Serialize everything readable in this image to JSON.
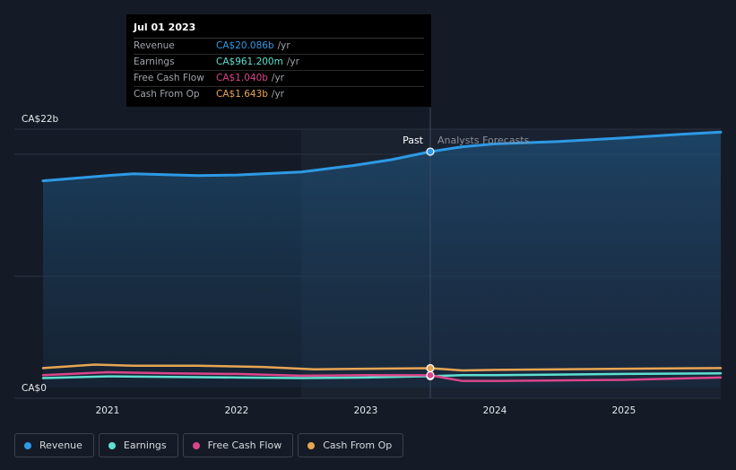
{
  "chart_data": {
    "type": "line",
    "y_axis": {
      "top_label": "CA$22b",
      "bottom_label": "CA$0",
      "ylim": [
        0,
        22
      ]
    },
    "x_axis": {
      "ticks": [
        "2021",
        "2022",
        "2023",
        "2024",
        "2025"
      ]
    },
    "divider_date": 2023.5,
    "past_label": "Past",
    "forecast_label": "Analysts Forecasts",
    "series": [
      {
        "name": "Revenue",
        "color": "#2d9ae5",
        "points": [
          [
            2020.5,
            17.6
          ],
          [
            2021.0,
            18.05
          ],
          [
            2021.2,
            18.2
          ],
          [
            2021.7,
            18.05
          ],
          [
            2022.0,
            18.1
          ],
          [
            2022.5,
            18.35
          ],
          [
            2022.9,
            18.9
          ],
          [
            2023.2,
            19.4
          ],
          [
            2023.5,
            20.086
          ],
          [
            2023.75,
            20.5
          ],
          [
            2024.0,
            20.75
          ],
          [
            2024.5,
            20.95
          ],
          [
            2025.0,
            21.25
          ],
          [
            2025.5,
            21.6
          ],
          [
            2025.75,
            21.75
          ]
        ]
      },
      {
        "name": "Earnings",
        "color": "#5ee0d0",
        "points": [
          [
            2020.5,
            0.8
          ],
          [
            2021.0,
            0.95
          ],
          [
            2021.5,
            0.9
          ],
          [
            2022.0,
            0.85
          ],
          [
            2022.5,
            0.8
          ],
          [
            2023.0,
            0.85
          ],
          [
            2023.5,
            0.9612
          ],
          [
            2023.75,
            1.05
          ],
          [
            2024.0,
            1.05
          ],
          [
            2024.5,
            1.1
          ],
          [
            2025.0,
            1.15
          ],
          [
            2025.75,
            1.2
          ]
        ]
      },
      {
        "name": "Free Cash Flow",
        "color": "#d9468a",
        "points": [
          [
            2020.5,
            1.05
          ],
          [
            2021.0,
            1.3
          ],
          [
            2021.5,
            1.2
          ],
          [
            2022.0,
            1.15
          ],
          [
            2022.5,
            1.0
          ],
          [
            2023.0,
            1.05
          ],
          [
            2023.5,
            1.04
          ],
          [
            2023.75,
            0.55
          ],
          [
            2024.0,
            0.55
          ],
          [
            2024.5,
            0.6
          ],
          [
            2025.0,
            0.65
          ],
          [
            2025.75,
            0.85
          ]
        ]
      },
      {
        "name": "Cash From Op",
        "color": "#e8a552",
        "points": [
          [
            2020.5,
            1.65
          ],
          [
            2020.9,
            1.95
          ],
          [
            2021.2,
            1.85
          ],
          [
            2021.7,
            1.85
          ],
          [
            2022.2,
            1.75
          ],
          [
            2022.6,
            1.55
          ],
          [
            2023.0,
            1.6
          ],
          [
            2023.5,
            1.643
          ],
          [
            2023.75,
            1.45
          ],
          [
            2024.0,
            1.5
          ],
          [
            2024.5,
            1.55
          ],
          [
            2025.0,
            1.6
          ],
          [
            2025.75,
            1.65
          ]
        ]
      }
    ]
  },
  "tooltip": {
    "date": "Jul 01 2023",
    "rows": [
      {
        "label": "Revenue",
        "value": "CA$20.086b",
        "unit": "/yr",
        "color": "#2d9ae5"
      },
      {
        "label": "Earnings",
        "value": "CA$961.200m",
        "unit": "/yr",
        "color": "#5ee0d0"
      },
      {
        "label": "Free Cash Flow",
        "value": "CA$1.040b",
        "unit": "/yr",
        "color": "#d9468a"
      },
      {
        "label": "Cash From Op",
        "value": "CA$1.643b",
        "unit": "/yr",
        "color": "#e8a552"
      }
    ]
  },
  "legend": [
    {
      "label": "Revenue",
      "color": "#2d9ae5"
    },
    {
      "label": "Earnings",
      "color": "#5ee0d0"
    },
    {
      "label": "Free Cash Flow",
      "color": "#d9468a"
    },
    {
      "label": "Cash From Op",
      "color": "#e8a552"
    }
  ]
}
